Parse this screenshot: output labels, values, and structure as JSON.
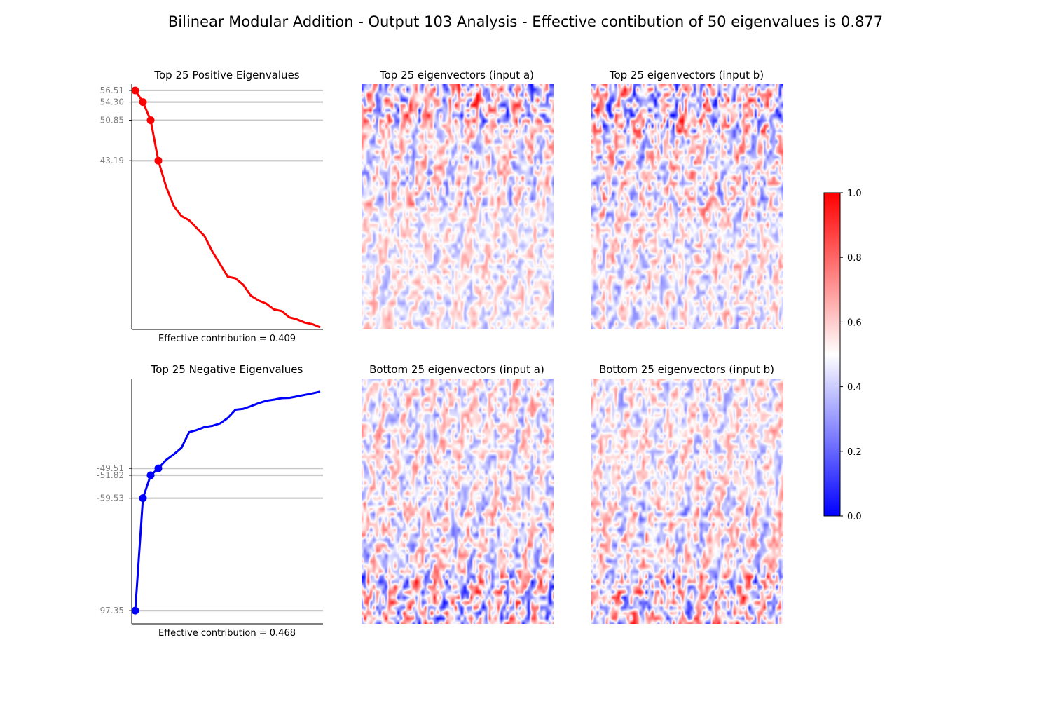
{
  "title": "Bilinear Modular Addition - Output 103 Analysis - Effective contibution of 50 eigenvalues is 0.877",
  "colors": {
    "positive": "#ff0000",
    "negative": "#0000ff",
    "guide": "#c8c8c8",
    "cmap": [
      "#0000ff",
      "#ffffff",
      "#ff0000"
    ]
  },
  "chart_data": [
    {
      "type": "line",
      "title": "Top 25 Positive Eigenvalues",
      "xlabel": "Effective contribution = 0.409",
      "ylabel": "",
      "x": [
        1,
        2,
        3,
        4,
        5,
        6,
        7,
        8,
        9,
        10,
        11,
        12,
        13,
        14,
        15,
        16,
        17,
        18,
        19,
        20,
        21,
        22,
        23,
        24,
        25
      ],
      "series": [
        {
          "values": [
            56.51,
            54.3,
            50.85,
            43.19,
            38.3,
            34.6,
            32.7,
            31.9,
            30.4,
            28.9,
            26.0,
            23.6,
            21.2,
            20.9,
            19.7,
            17.6,
            16.7,
            16.1,
            15.0,
            14.7,
            13.5,
            13.1,
            12.5,
            12.2,
            11.6
          ]
        }
      ],
      "highlighted": [
        56.51,
        54.3,
        50.85,
        43.19
      ],
      "tick_labels": [
        "56.51",
        "54.30",
        "50.85",
        "43.19"
      ],
      "ylim": [
        11.2,
        57.7
      ],
      "grid": false
    },
    {
      "type": "line",
      "title": "Top 25 Negative Eigenvalues",
      "xlabel": "Effective contribution = 0.468",
      "ylabel": "",
      "x": [
        1,
        2,
        3,
        4,
        5,
        6,
        7,
        8,
        9,
        10,
        11,
        12,
        13,
        14,
        15,
        16,
        17,
        18,
        19,
        20,
        21,
        22,
        23,
        24,
        25
      ],
      "series": [
        {
          "values": [
            -97.35,
            -59.53,
            -51.82,
            -49.51,
            -46.7,
            -44.8,
            -42.6,
            -37.3,
            -36.6,
            -35.6,
            -35.2,
            -34.4,
            -32.6,
            -29.8,
            -29.5,
            -28.6,
            -27.6,
            -26.8,
            -26.4,
            -25.9,
            -25.8,
            -25.3,
            -24.8,
            -24.3,
            -23.7
          ]
        }
      ],
      "highlighted": [
        -97.35,
        -59.53,
        -51.82,
        -49.51
      ],
      "tick_labels": [
        "-49.51",
        "-51.82",
        "-59.53",
        "-97.35"
      ],
      "ylim": [
        -101.8,
        -19.3
      ],
      "grid": false
    },
    {
      "type": "heatmap",
      "title": "Top 25 eigenvectors (input a)",
      "value_range": [
        0.0,
        1.0
      ]
    },
    {
      "type": "heatmap",
      "title": "Top 25 eigenvectors (input b)",
      "value_range": [
        0.0,
        1.0
      ]
    },
    {
      "type": "heatmap",
      "title": "Bottom 25 eigenvectors (input a)",
      "value_range": [
        0.0,
        1.0
      ]
    },
    {
      "type": "heatmap",
      "title": "Bottom 25 eigenvectors (input b)",
      "value_range": [
        0.0,
        1.0
      ]
    },
    {
      "type": "colorbar",
      "range": [
        0.0,
        1.0
      ],
      "tick_values": [
        0.0,
        0.2,
        0.4,
        0.6,
        0.8,
        1.0
      ],
      "tick_labels": [
        "0.0",
        "0.2",
        "0.4",
        "0.6",
        "0.8",
        "1.0"
      ]
    }
  ]
}
